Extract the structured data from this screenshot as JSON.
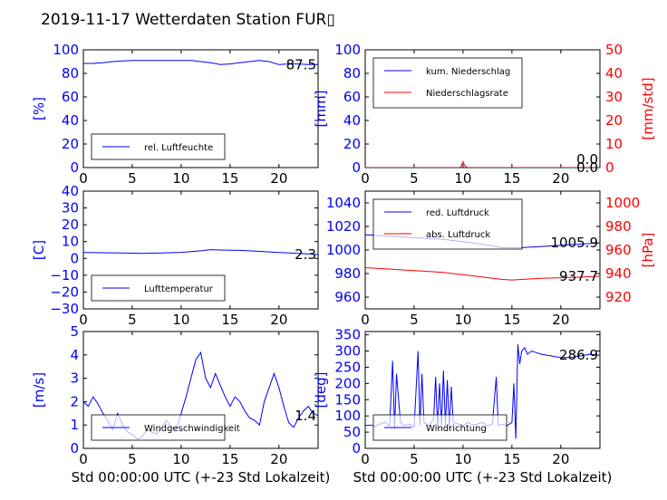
{
  "title": "2019-11-17 Wetterdaten Station FUR▯",
  "colors": {
    "primary": "#0000ff",
    "secondary": "#ff0000",
    "axis": "#000000",
    "legend_border": "#000000"
  },
  "chart_data": [
    {
      "type": "line",
      "position": "top-left",
      "xlim": [
        0,
        24
      ],
      "xticks": [
        "0",
        "5",
        "10",
        "15",
        "20"
      ],
      "ylabel": "[%]",
      "ylim": [
        0,
        100
      ],
      "yticks": [
        "0",
        "20",
        "40",
        "60",
        "80",
        "100"
      ],
      "legend": [
        "rel. Luftfeuchte"
      ],
      "value_label": "87.5",
      "series": [
        {
          "name": "rel. Luftfeuchte",
          "axis": "left",
          "color": "#0000ff",
          "x": [
            0,
            1,
            2,
            3,
            4,
            5,
            6,
            7,
            8,
            9,
            10,
            11,
            12,
            13,
            14,
            15,
            16,
            17,
            18,
            19,
            20,
            21,
            22,
            23,
            24
          ],
          "y": [
            88.5,
            88.5,
            89,
            90,
            90.5,
            91,
            91,
            91,
            91,
            91,
            91,
            91,
            90,
            89,
            87.5,
            88,
            89,
            90,
            91,
            90,
            87.5,
            88,
            88,
            87.5,
            87.5
          ]
        }
      ]
    },
    {
      "type": "line",
      "position": "top-right",
      "xlim": [
        0,
        24
      ],
      "xticks": [
        "0",
        "5",
        "10",
        "15",
        "20"
      ],
      "ylabel": "[mm]",
      "ylim": [
        0,
        100
      ],
      "yticks": [
        "0",
        "20",
        "40",
        "60",
        "80",
        "100"
      ],
      "ylabel2": "[mm/std]",
      "ylim2": [
        0,
        50
      ],
      "yticks2": [
        "0",
        "10",
        "20",
        "30",
        "40",
        "50"
      ],
      "legend": [
        "kum. Niederschlag",
        "Niederschlagsrate"
      ],
      "value_label": "0.0",
      "value_label2": "0.0",
      "series": [
        {
          "name": "kum. Niederschlag",
          "axis": "left",
          "color": "#0000ff",
          "x": [
            0,
            24
          ],
          "y": [
            0,
            0
          ]
        },
        {
          "name": "Niederschlagsrate",
          "axis": "right",
          "color": "#ff0000",
          "x": [
            0,
            9.7,
            9.85,
            10.0,
            10.15,
            10.4,
            24
          ],
          "y": [
            0,
            0,
            1,
            2.5,
            1,
            0,
            0
          ]
        }
      ]
    },
    {
      "type": "line",
      "position": "middle-left",
      "xlim": [
        0,
        24
      ],
      "xticks": [
        "0",
        "5",
        "10",
        "15",
        "20"
      ],
      "ylabel": "[C]",
      "ylim": [
        -30,
        40
      ],
      "yticks": [
        "−30",
        "−20",
        "−10",
        "0",
        "10",
        "20",
        "30",
        "40"
      ],
      "legend": [
        "Lufttemperatur"
      ],
      "value_label": "2.3",
      "series": [
        {
          "name": "Lufttemperatur",
          "axis": "left",
          "color": "#0000ff",
          "x": [
            0,
            2,
            4,
            6,
            8,
            10,
            12,
            13,
            14,
            16,
            18,
            20,
            22,
            24
          ],
          "y": [
            3.5,
            3.4,
            3.2,
            3.0,
            3.2,
            3.6,
            4.5,
            5.2,
            5.0,
            4.8,
            4.2,
            3.5,
            3.0,
            2.3
          ]
        }
      ]
    },
    {
      "type": "line",
      "position": "middle-right",
      "xlim": [
        0,
        24
      ],
      "xticks": [
        "0",
        "5",
        "10",
        "15",
        "20"
      ],
      "ylabel": "",
      "ylim": [
        950,
        1050
      ],
      "yticks": [
        "960",
        "980",
        "1000",
        "1020",
        "1040"
      ],
      "ylabel2": "[hPa]",
      "ylim2": [
        910,
        1010
      ],
      "yticks2": [
        "920",
        "940",
        "960",
        "980",
        "1000"
      ],
      "legend": [
        "red. Luftdruck",
        "abs. Luftdruck"
      ],
      "value_label": "1005.9",
      "value_label2": "937.7",
      "series": [
        {
          "name": "red. Luftdruck",
          "axis": "left",
          "color": "#0000ff",
          "x": [
            0,
            2,
            4,
            6,
            8,
            10,
            12,
            14,
            15,
            16,
            18,
            20,
            22,
            24
          ],
          "y": [
            1013,
            1012,
            1011,
            1010,
            1009,
            1007,
            1005,
            1002,
            1002,
            1002,
            1003,
            1004,
            1005,
            1006
          ]
        },
        {
          "name": "abs. Luftdruck",
          "axis": "right",
          "color": "#ff0000",
          "x": [
            0,
            2,
            4,
            6,
            8,
            10,
            12,
            14,
            15,
            16,
            18,
            20,
            22,
            24
          ],
          "y": [
            945,
            944,
            943,
            942,
            941,
            939,
            937,
            935,
            934.5,
            935,
            936,
            936.5,
            937,
            937.7
          ]
        }
      ]
    },
    {
      "type": "line",
      "position": "bottom-left",
      "xlim": [
        0,
        24
      ],
      "xticks": [
        "0",
        "5",
        "10",
        "15",
        "20"
      ],
      "xlabel": "Std 00:00:00 UTC (+-23 Std Lokalzeit)",
      "ylabel": "[m/s]",
      "ylim": [
        0,
        5
      ],
      "yticks": [
        "0",
        "1",
        "2",
        "3",
        "4",
        "5"
      ],
      "legend": [
        "Windgeschwindigkeit"
      ],
      "value_label": "1.4",
      "series": [
        {
          "name": "Windgeschwindigkeit",
          "axis": "left",
          "color": "#0000ff",
          "x": [
            0,
            0.5,
            1,
            1.5,
            2,
            2.5,
            3,
            3.5,
            4,
            4.5,
            5,
            5.5,
            6,
            6.5,
            7,
            7.5,
            8,
            8.5,
            9,
            9.5,
            10,
            10.5,
            11,
            11.5,
            12,
            12.5,
            13,
            13.5,
            14,
            14.5,
            15,
            15.5,
            16,
            16.5,
            17,
            17.5,
            18,
            18.5,
            19,
            19.5,
            20,
            20.5,
            21,
            21.5,
            22,
            22.5,
            23,
            23.5,
            24
          ],
          "y": [
            2.0,
            1.8,
            2.2,
            1.9,
            1.5,
            1.2,
            0.8,
            1.5,
            1.0,
            0.7,
            0.6,
            0.4,
            0.5,
            0.8,
            0.7,
            0.6,
            0.9,
            1.2,
            0.9,
            0.8,
            1.5,
            2.2,
            3.0,
            3.8,
            4.1,
            3.0,
            2.6,
            3.2,
            2.7,
            2.2,
            1.8,
            2.2,
            2.0,
            1.6,
            1.3,
            1.2,
            1.0,
            2.0,
            2.6,
            3.2,
            2.6,
            1.8,
            1.1,
            0.9,
            1.3,
            1.6,
            1.8,
            1.5,
            1.4
          ]
        }
      ]
    },
    {
      "type": "line",
      "position": "bottom-right",
      "xlim": [
        0,
        24
      ],
      "xticks": [
        "0",
        "5",
        "10",
        "15",
        "20"
      ],
      "xlabel": "Std 00:00:00 UTC (+-23 Std Lokalzeit)",
      "ylabel": "[deg]",
      "ylim": [
        0,
        360
      ],
      "yticks": [
        "0",
        "50",
        "100",
        "150",
        "200",
        "250",
        "300",
        "350"
      ],
      "legend": [
        "Windrichtung"
      ],
      "value_label": "286.9",
      "series": [
        {
          "name": "Windrichtung",
          "axis": "left",
          "color": "#0000ff",
          "x": [
            0,
            0.5,
            1,
            1.5,
            2,
            2.5,
            2.8,
            3.0,
            3.2,
            3.6,
            4,
            4.5,
            5,
            5.4,
            5.6,
            5.8,
            6,
            6.5,
            7,
            7.2,
            7.4,
            7.6,
            7.8,
            8,
            8.2,
            8.4,
            8.6,
            8.8,
            9,
            9.5,
            10,
            10.5,
            11,
            11.5,
            12,
            12.5,
            13,
            13.4,
            13.6,
            14,
            14.5,
            15,
            15.2,
            15.4,
            15.6,
            15.8,
            16,
            16.3,
            16.6,
            17,
            17.5,
            18,
            19,
            20,
            21,
            22,
            23,
            24
          ],
          "y": [
            70,
            72,
            68,
            75,
            80,
            70,
            270,
            60,
            230,
            80,
            70,
            75,
            65,
            300,
            70,
            230,
            80,
            70,
            90,
            220,
            60,
            200,
            70,
            240,
            70,
            210,
            60,
            190,
            80,
            75,
            70,
            80,
            72,
            75,
            80,
            70,
            75,
            220,
            70,
            75,
            70,
            80,
            200,
            30,
            320,
            260,
            300,
            310,
            290,
            300,
            295,
            290,
            285,
            280,
            280,
            285,
            290,
            286.9
          ]
        }
      ]
    }
  ]
}
